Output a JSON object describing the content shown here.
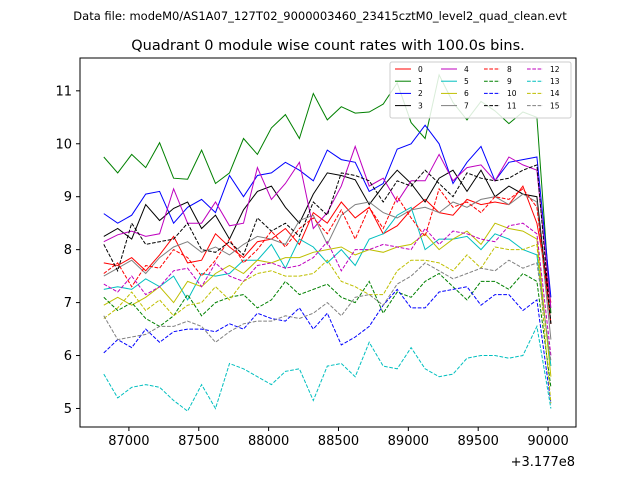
{
  "suptitle": "Data file: modeM0/AS1A07_127T02_9000003460_23415cztM0_level2_quad_clean.evt",
  "chart_data": {
    "type": "line",
    "title": "Quadrant 0 module wise count rates with 100.0s bins.",
    "xlabel": "",
    "ylabel": "",
    "x_offset_label": "+3.177e8",
    "xlim": [
      86650,
      90200
    ],
    "ylim": [
      4.65,
      11.62
    ],
    "xticks": [
      87000,
      87500,
      88000,
      88500,
      89000,
      89500,
      90000
    ],
    "yticks": [
      5,
      6,
      7,
      8,
      9,
      10,
      11
    ],
    "x": [
      86820,
      86920,
      87020,
      87120,
      87220,
      87320,
      87420,
      87520,
      87620,
      87720,
      87820,
      87920,
      88020,
      88120,
      88220,
      88320,
      88420,
      88520,
      88620,
      88720,
      88820,
      88920,
      89020,
      89120,
      89220,
      89320,
      89420,
      89520,
      89620,
      89720,
      89820,
      89920,
      90020
    ],
    "legend_location": "upper right",
    "series": [
      {
        "name": "0",
        "color": "#ff0000",
        "dash": "solid",
        "values": [
          7.75,
          7.7,
          7.85,
          7.6,
          7.9,
          8.25,
          7.75,
          7.8,
          8.3,
          8.05,
          7.85,
          8.15,
          8.2,
          8.4,
          8.1,
          8.7,
          8.5,
          8.9,
          8.6,
          8.8,
          8.3,
          8.45,
          8.75,
          8.95,
          8.7,
          8.65,
          8.95,
          8.85,
          8.9,
          8.85,
          9.2,
          8.5,
          7.0
        ]
      },
      {
        "name": "1",
        "color": "#008000",
        "dash": "solid",
        "values": [
          9.75,
          9.45,
          9.8,
          9.55,
          10.02,
          9.35,
          9.33,
          9.88,
          9.25,
          9.45,
          10.1,
          9.8,
          10.3,
          10.55,
          10.1,
          10.95,
          10.45,
          10.7,
          10.58,
          10.6,
          10.75,
          11.15,
          10.4,
          10.1,
          11.3,
          10.78,
          10.45,
          10.8,
          10.62,
          10.38,
          10.6,
          10.5,
          6.8
        ]
      },
      {
        "name": "2",
        "color": "#0000ff",
        "dash": "solid",
        "values": [
          8.68,
          8.5,
          8.65,
          9.05,
          9.1,
          8.5,
          8.8,
          8.95,
          8.7,
          9.4,
          9.0,
          9.4,
          9.45,
          9.65,
          9.5,
          9.3,
          9.88,
          9.7,
          9.65,
          9.1,
          9.25,
          9.9,
          10.0,
          10.35,
          10.0,
          9.25,
          9.65,
          9.95,
          9.3,
          9.65,
          9.7,
          9.75,
          7.1
        ]
      },
      {
        "name": "3",
        "color": "#000000",
        "dash": "solid",
        "values": [
          8.25,
          8.4,
          8.2,
          8.85,
          8.55,
          8.78,
          8.9,
          8.4,
          8.65,
          8.2,
          8.75,
          9.1,
          9.2,
          8.8,
          8.5,
          9.05,
          9.45,
          9.4,
          9.32,
          8.85,
          9.2,
          9.5,
          9.25,
          8.9,
          9.35,
          9.5,
          9.1,
          9.5,
          9.0,
          9.2,
          9.05,
          9.0,
          6.6
        ]
      },
      {
        "name": "4",
        "color": "#bf00bf",
        "dash": "solid",
        "values": [
          8.15,
          8.28,
          8.35,
          8.25,
          8.3,
          9.15,
          8.5,
          8.5,
          8.9,
          8.45,
          8.5,
          9.55,
          8.95,
          9.25,
          9.65,
          8.4,
          8.7,
          9.2,
          9.95,
          9.2,
          9.35,
          8.9,
          9.3,
          9.3,
          9.8,
          9.3,
          9.55,
          9.6,
          9.3,
          9.75,
          9.6,
          9.5,
          6.9
        ]
      },
      {
        "name": "5",
        "color": "#00bfbf",
        "dash": "solid",
        "values": [
          7.25,
          7.3,
          7.25,
          7.45,
          7.3,
          7.5,
          7.05,
          7.55,
          7.5,
          7.55,
          7.8,
          7.8,
          8.1,
          7.65,
          8.2,
          8.05,
          7.75,
          8.0,
          7.7,
          8.2,
          8.3,
          8.65,
          8.8,
          8.0,
          8.2,
          8.2,
          8.25,
          8.0,
          8.3,
          8.2,
          8.0,
          7.9,
          5.8
        ]
      },
      {
        "name": "6",
        "color": "#bfbf00",
        "dash": "solid",
        "values": [
          6.95,
          7.1,
          6.95,
          7.1,
          7.3,
          7.0,
          7.4,
          7.3,
          7.55,
          7.7,
          7.55,
          7.8,
          7.75,
          7.85,
          7.85,
          7.95,
          8.0,
          8.05,
          7.9,
          8.0,
          7.95,
          8.05,
          8.1,
          8.3,
          8.0,
          8.2,
          8.35,
          8.1,
          8.5,
          8.4,
          8.35,
          8.2,
          5.6
        ]
      },
      {
        "name": "7",
        "color": "#808080",
        "dash": "solid",
        "values": [
          7.5,
          7.65,
          7.8,
          7.55,
          7.85,
          8.05,
          8.15,
          7.95,
          8.05,
          7.9,
          8.1,
          8.25,
          8.2,
          8.1,
          8.55,
          8.65,
          8.1,
          8.65,
          8.85,
          8.9,
          8.7,
          8.6,
          8.75,
          8.8,
          8.7,
          8.9,
          8.8,
          8.95,
          9.0,
          8.85,
          9.05,
          8.9,
          6.3
        ]
      },
      {
        "name": "8",
        "color": "#ff0000",
        "dash": "dashed",
        "values": [
          7.55,
          7.75,
          7.3,
          7.7,
          7.65,
          8.0,
          7.85,
          7.5,
          7.8,
          8.2,
          7.75,
          8.0,
          8.35,
          8.05,
          8.4,
          8.6,
          8.3,
          8.75,
          8.2,
          8.8,
          8.4,
          9.0,
          8.6,
          8.25,
          9.15,
          8.8,
          8.9,
          8.7,
          9.0,
          8.95,
          9.15,
          8.8,
          6.6
        ]
      },
      {
        "name": "9",
        "color": "#008000",
        "dash": "dashed",
        "values": [
          7.1,
          6.85,
          7.0,
          6.7,
          6.55,
          6.75,
          7.15,
          6.75,
          7.0,
          7.1,
          7.15,
          6.9,
          7.05,
          7.4,
          7.15,
          7.25,
          7.35,
          7.1,
          7.0,
          7.4,
          6.8,
          7.2,
          7.1,
          7.4,
          7.55,
          7.3,
          7.05,
          7.4,
          7.4,
          7.25,
          7.55,
          7.4,
          5.4
        ]
      },
      {
        "name": "10",
        "color": "#0000ff",
        "dash": "dashed",
        "values": [
          6.05,
          6.3,
          6.15,
          6.5,
          6.25,
          6.45,
          6.5,
          6.5,
          6.45,
          6.6,
          6.5,
          6.8,
          6.7,
          6.65,
          6.9,
          6.5,
          6.8,
          6.2,
          6.35,
          6.55,
          6.95,
          7.25,
          6.9,
          6.9,
          7.2,
          7.25,
          7.3,
          6.95,
          7.15,
          7.15,
          6.85,
          7.05,
          5.1
        ]
      },
      {
        "name": "11",
        "color": "#000000",
        "dash": "dashed",
        "values": [
          8.1,
          7.6,
          8.5,
          8.1,
          8.15,
          8.2,
          8.5,
          8.0,
          7.95,
          8.15,
          7.9,
          8.6,
          8.35,
          8.5,
          8.25,
          8.9,
          8.65,
          9.45,
          9.4,
          9.3,
          8.9,
          9.3,
          9.2,
          9.5,
          9.25,
          9.0,
          9.45,
          9.35,
          9.3,
          9.35,
          9.5,
          9.6,
          6.6
        ]
      },
      {
        "name": "12",
        "color": "#bf00bf",
        "dash": "dashed",
        "values": [
          7.35,
          7.2,
          7.5,
          7.15,
          7.3,
          7.6,
          7.65,
          7.3,
          7.75,
          7.5,
          7.4,
          7.7,
          7.75,
          7.65,
          7.7,
          7.85,
          8.15,
          7.6,
          8.0,
          8.0,
          8.1,
          8.05,
          8.0,
          8.4,
          8.1,
          8.35,
          8.3,
          8.2,
          8.15,
          8.45,
          8.5,
          8.3,
          6.0
        ]
      },
      {
        "name": "13",
        "color": "#00bfbf",
        "dash": "dashed",
        "values": [
          5.65,
          5.2,
          5.4,
          5.45,
          5.4,
          5.15,
          4.95,
          5.45,
          5.0,
          5.85,
          5.75,
          5.6,
          5.45,
          5.7,
          5.75,
          5.15,
          5.8,
          5.85,
          5.6,
          6.25,
          5.8,
          5.75,
          6.15,
          5.75,
          5.6,
          5.65,
          5.95,
          6.0,
          6.0,
          5.95,
          6.0,
          6.55,
          5.0
        ]
      },
      {
        "name": "14",
        "color": "#bfbf00",
        "dash": "dashed",
        "values": [
          6.7,
          6.9,
          7.2,
          6.85,
          7.05,
          6.75,
          6.95,
          7.0,
          7.3,
          7.05,
          7.4,
          7.55,
          7.6,
          7.5,
          7.5,
          7.55,
          7.8,
          7.4,
          7.3,
          7.15,
          7.15,
          7.6,
          7.8,
          7.8,
          7.75,
          7.6,
          7.9,
          7.65,
          8.05,
          8.0,
          8.0,
          8.1,
          5.1
        ]
      },
      {
        "name": "15",
        "color": "#808080",
        "dash": "dashed",
        "values": [
          6.75,
          6.3,
          6.35,
          6.4,
          6.55,
          6.55,
          6.65,
          6.55,
          6.25,
          6.45,
          6.6,
          6.65,
          6.65,
          6.75,
          6.7,
          6.8,
          7.0,
          6.75,
          7.1,
          7.15,
          6.95,
          7.35,
          7.5,
          7.75,
          7.6,
          7.45,
          7.55,
          7.65,
          7.6,
          7.8,
          7.65,
          7.75,
          5.9
        ]
      }
    ]
  }
}
